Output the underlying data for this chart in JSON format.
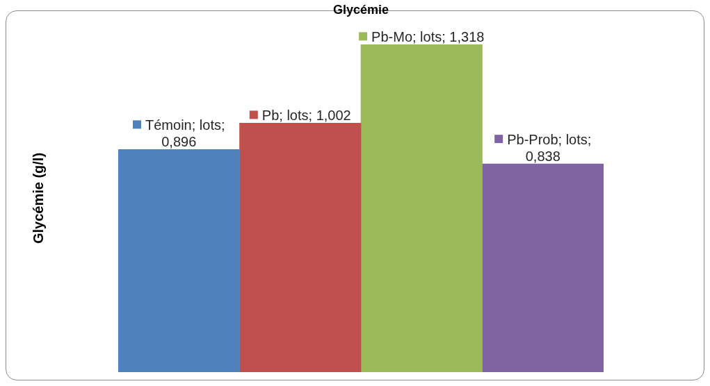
{
  "chart_data": {
    "type": "bar",
    "title": "Glycémie",
    "ylabel": "Glycémie (g/l)",
    "categories": [
      null
    ],
    "series": [
      {
        "name": "Témoin",
        "color": "#4f81bd",
        "values": [
          0.896
        ],
        "value_labels": [
          "; lots; 0,896"
        ]
      },
      {
        "name": "Pb",
        "color": "#c0504d",
        "values": [
          1.002
        ],
        "value_labels": [
          "; lots; 1,002"
        ]
      },
      {
        "name": "Pb-Mo",
        "color": "#9bbb59",
        "values": [
          1.318
        ],
        "value_labels": [
          "; lots; 1,318"
        ]
      },
      {
        "name": "Pb-Prob",
        "color": "#8064a2",
        "values": [
          0.838
        ],
        "value_labels": [
          "; lots; 0,838"
        ]
      }
    ],
    "tick_labels": false,
    "grid": false,
    "legend": "top"
  }
}
